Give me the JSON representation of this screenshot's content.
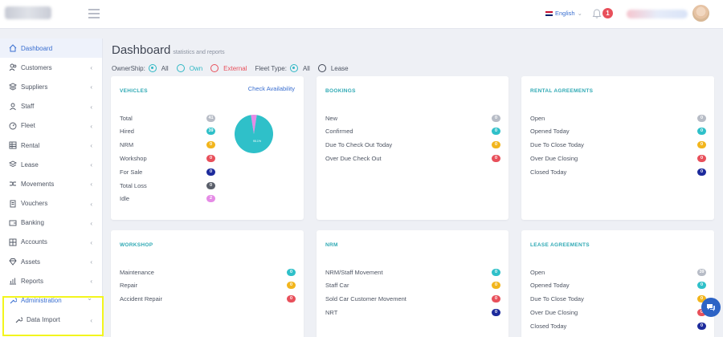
{
  "header": {
    "language": "English"
  },
  "notifications": {
    "count": "1"
  },
  "sidebar": {
    "items": [
      {
        "label": "Dashboard",
        "icon": "home-icon"
      },
      {
        "label": "Customers",
        "icon": "users-icon"
      },
      {
        "label": "Suppliers",
        "icon": "layers-icon"
      },
      {
        "label": "Staff",
        "icon": "user-icon"
      },
      {
        "label": "Fleet",
        "icon": "gauge-icon"
      },
      {
        "label": "Rental",
        "icon": "table-icon"
      },
      {
        "label": "Lease",
        "icon": "stack-icon"
      },
      {
        "label": "Movements",
        "icon": "shuffle-icon"
      },
      {
        "label": "Vouchers",
        "icon": "document-icon"
      },
      {
        "label": "Banking",
        "icon": "wallet-icon"
      },
      {
        "label": "Accounts",
        "icon": "grid-icon"
      },
      {
        "label": "Assets",
        "icon": "diamond-icon"
      },
      {
        "label": "Reports",
        "icon": "chart-icon"
      },
      {
        "label": "Administration",
        "icon": "wrench-icon"
      },
      {
        "label": "Data Import",
        "icon": "wrench-icon"
      }
    ]
  },
  "page": {
    "title": "Dashboard",
    "subtitle": "statistics and reports"
  },
  "filters": {
    "ownership_label": "OwnerShip:",
    "ownership_options": [
      "All",
      "Own",
      "External"
    ],
    "ownership_selected": "All",
    "fleet_type_label": "Fleet Type:",
    "fleet_type_options": [
      "All",
      "Lease"
    ],
    "fleet_type_selected": "All"
  },
  "colors": {
    "gray": "#b7bcc6",
    "teal": "#2fc0c9",
    "yellow": "#f2b51c",
    "red": "#e8505b",
    "navy": "#1d2b9c",
    "dark": "#5a5f6a",
    "pink": "#e58be6"
  },
  "cards": {
    "vehicles": {
      "title": "VEHICLES",
      "link": "Check Availability",
      "rows": [
        {
          "label": "Total",
          "value": "41",
          "color": "gray"
        },
        {
          "label": "Hired",
          "value": "39",
          "color": "teal"
        },
        {
          "label": "NRM",
          "value": "0",
          "color": "yellow"
        },
        {
          "label": "Workshop",
          "value": "0",
          "color": "red"
        },
        {
          "label": "For Sale",
          "value": "0",
          "color": "navy"
        },
        {
          "label": "Total Loss",
          "value": "0",
          "color": "dark"
        },
        {
          "label": "Idle",
          "value": "2",
          "color": "pink"
        }
      ],
      "pie_label": "95.1%"
    },
    "bookings": {
      "title": "BOOKINGS",
      "rows": [
        {
          "label": "New",
          "value": "0",
          "color": "gray"
        },
        {
          "label": "Confirmed",
          "value": "0",
          "color": "teal"
        },
        {
          "label": "Due To Check Out Today",
          "value": "0",
          "color": "yellow"
        },
        {
          "label": "Over Due Check Out",
          "value": "0",
          "color": "red"
        }
      ]
    },
    "rental_agreements": {
      "title": "RENTAL AGREEMENTS",
      "rows": [
        {
          "label": "Open",
          "value": "0",
          "color": "gray"
        },
        {
          "label": "Opened Today",
          "value": "0",
          "color": "teal"
        },
        {
          "label": "Due To Close Today",
          "value": "0",
          "color": "yellow"
        },
        {
          "label": "Over Due Closing",
          "value": "0",
          "color": "red"
        },
        {
          "label": "Closed Today",
          "value": "0",
          "color": "navy"
        }
      ]
    },
    "workshop": {
      "title": "WORKSHOP",
      "rows": [
        {
          "label": "Maintenance",
          "value": "0",
          "color": "teal"
        },
        {
          "label": "Repair",
          "value": "0",
          "color": "yellow"
        },
        {
          "label": "Accident Repair",
          "value": "0",
          "color": "red"
        }
      ]
    },
    "nrm": {
      "title": "NRM",
      "rows": [
        {
          "label": "NRM/Staff Movement",
          "value": "0",
          "color": "teal"
        },
        {
          "label": "Staff Car",
          "value": "0",
          "color": "yellow"
        },
        {
          "label": "Sold Car Customer Movement",
          "value": "0",
          "color": "red"
        },
        {
          "label": "NRT",
          "value": "0",
          "color": "navy"
        }
      ]
    },
    "lease_agreements": {
      "title": "LEASE AGREEMENTS",
      "rows": [
        {
          "label": "Open",
          "value": "39",
          "color": "gray"
        },
        {
          "label": "Opened Today",
          "value": "0",
          "color": "teal"
        },
        {
          "label": "Due To Close Today",
          "value": "0",
          "color": "yellow"
        },
        {
          "label": "Over Due Closing",
          "value": "0",
          "color": "red"
        },
        {
          "label": "Closed Today",
          "value": "0",
          "color": "navy"
        }
      ]
    }
  },
  "chart_data": {
    "type": "pie",
    "categories": [
      "Hired",
      "Idle"
    ],
    "values": [
      39,
      2
    ],
    "labels": [
      "95.1%"
    ],
    "colors": [
      "#2fc0c9",
      "#e58be6"
    ]
  }
}
